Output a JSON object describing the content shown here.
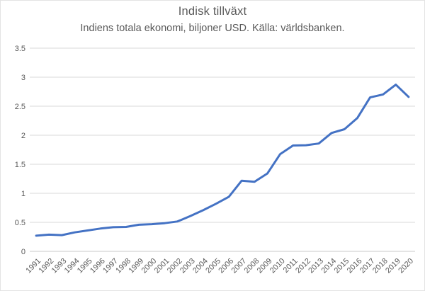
{
  "chart": {
    "title": "Indisk tillväxt",
    "subtitle": "Indiens totala ekonomi, biljoner USD. Källa: världsbanken.",
    "colors": {
      "line": "#4472C4",
      "text": "#595959",
      "gridline": "#D9D9D9",
      "axis_line": "#C8C8C8",
      "border": "#E3E3E3",
      "background": "#FFFFFF"
    }
  },
  "chart_data": {
    "type": "line",
    "title": "Indisk tillväxt",
    "subtitle": "Indiens totala ekonomi, biljoner USD. Källa: världsbanken.",
    "categories": [
      "1991",
      "1992",
      "1993",
      "1994",
      "1995",
      "1996",
      "1997",
      "1998",
      "1999",
      "2000",
      "2001",
      "2002",
      "2003",
      "2004",
      "2005",
      "2006",
      "2007",
      "2008",
      "2009",
      "2010",
      "2011",
      "2012",
      "2013",
      "2014",
      "2015",
      "2016",
      "2017",
      "2018",
      "2019",
      "2020"
    ],
    "values": [
      0.27,
      0.288,
      0.279,
      0.327,
      0.36,
      0.393,
      0.416,
      0.421,
      0.459,
      0.468,
      0.485,
      0.515,
      0.608,
      0.709,
      0.82,
      0.94,
      1.217,
      1.199,
      1.342,
      1.676,
      1.823,
      1.828,
      1.857,
      2.039,
      2.104,
      2.295,
      2.651,
      2.703,
      2.871,
      2.66
    ],
    "ylim": [
      0,
      3.5
    ],
    "y_ticks": [
      0,
      0.5,
      1,
      1.5,
      2,
      2.5,
      3,
      3.5
    ],
    "y_tick_labels": [
      "0",
      "0.5",
      "1",
      "1.5",
      "2",
      "2.5",
      "3",
      "3.5"
    ],
    "x_tick_rotation_deg": 45,
    "grid": true,
    "legend": "none",
    "line_color": "#4472C4",
    "line_width": 3
  }
}
